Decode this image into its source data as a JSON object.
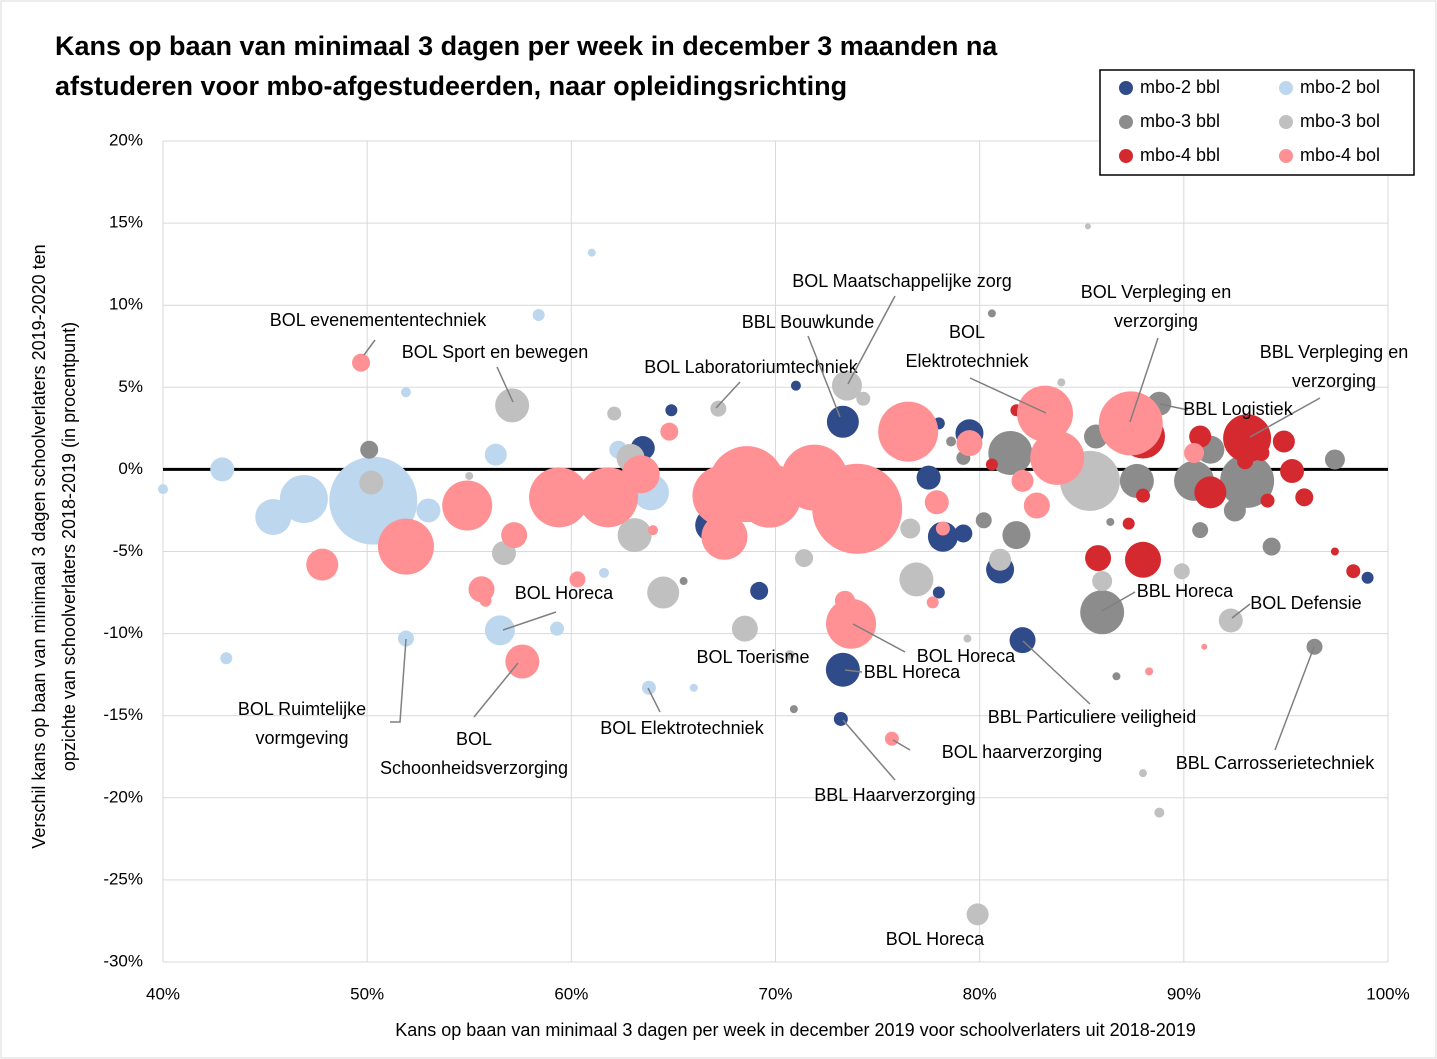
{
  "chart_data": {
    "type": "bubble",
    "title": [
      "Kans op baan van minimaal 3 dagen per week in december 3 maanden na",
      "afstuderen voor mbo-afgestudeerden, naar opleidingsrichting"
    ],
    "xlabel": "Kans op baan van minimaal 3 dagen per week in december 2019 voor schoolverlaters uit 2018-2019",
    "ylabel": [
      "Verschil kans op baan van minimaal 3 dagen schoolverlaters 2019-2020 ten",
      "opzichte van schoolverlaters 2018-2019 (in procentpunt)"
    ],
    "xlim": [
      40,
      100
    ],
    "xticks": [
      {
        "value": 40,
        "label": "40%"
      },
      {
        "value": 50,
        "label": "50%"
      },
      {
        "value": 60,
        "label": "60%"
      },
      {
        "value": 70,
        "label": "70%"
      },
      {
        "value": 80,
        "label": "80%"
      },
      {
        "value": 90,
        "label": "90%"
      },
      {
        "value": 100,
        "label": "100%"
      }
    ],
    "ylim": [
      -30,
      20
    ],
    "yticks": [
      {
        "value": -30,
        "label": "-30%"
      },
      {
        "value": -25,
        "label": "-25%"
      },
      {
        "value": -20,
        "label": "-20%"
      },
      {
        "value": -15,
        "label": "-15%"
      },
      {
        "value": -10,
        "label": "-10%"
      },
      {
        "value": -5,
        "label": "-5%"
      },
      {
        "value": 0,
        "label": "0%"
      },
      {
        "value": 5,
        "label": "5%"
      },
      {
        "value": 10,
        "label": "10%"
      },
      {
        "value": 15,
        "label": "15%"
      },
      {
        "value": 20,
        "label": "20%"
      }
    ],
    "grid": true,
    "legend": "top-right",
    "series": [
      {
        "name": "mbo-2 bbl",
        "color": "#2f4b8a",
        "x": [
          63.5,
          64.9,
          71.0,
          73.3,
          78.0,
          79.5,
          77.5,
          78.2,
          79.2,
          81.0,
          82.1,
          73.3,
          73.2,
          69.2,
          66.9,
          78.0,
          91.0,
          99.0
        ],
        "values": [
          1.3,
          3.6,
          5.1,
          2.9,
          2.8,
          2.2,
          -0.5,
          -4.1,
          -3.9,
          -6.1,
          -10.4,
          -12.2,
          -15.2,
          -7.4,
          -3.4,
          -7.5,
          -1.0,
          -6.6
        ],
        "sizes": [
          12,
          6,
          5,
          16,
          6,
          14,
          12,
          15,
          9,
          14,
          13,
          17,
          7,
          9,
          17,
          6,
          12,
          6
        ]
      },
      {
        "name": "mbo-2 bol",
        "color": "#bdd7ee",
        "x": [
          40.0,
          42.9,
          43.1,
          45.4,
          46.9,
          50.3,
          51.9,
          53.0,
          56.3,
          58.4,
          61.0,
          56.5,
          59.3,
          61.6,
          62.3,
          63.9,
          63.8,
          66.0,
          51.9,
          73.9
        ],
        "values": [
          -1.2,
          0.0,
          -11.5,
          -2.9,
          -1.8,
          -1.9,
          4.7,
          -2.5,
          0.9,
          9.4,
          13.2,
          -9.8,
          -9.7,
          -6.3,
          1.2,
          -1.4,
          -13.3,
          -13.3,
          -10.3,
          -4.2
        ],
        "sizes": [
          5,
          12,
          6,
          18,
          24,
          44,
          5,
          12,
          11,
          6,
          4,
          15,
          7,
          5,
          9,
          18,
          7,
          4,
          8,
          14
        ]
      },
      {
        "name": "mbo-3 bbl",
        "color": "#8c8c8c",
        "x": [
          50.1,
          81.5,
          85.7,
          88.8,
          87.7,
          90.5,
          91.3,
          93.1,
          90.8,
          92.5,
          94.3,
          97.4,
          86.0,
          96.4,
          81.8,
          80.2,
          80.6,
          79.2,
          78.6,
          86.4,
          86.7,
          70.9,
          65.5
        ],
        "values": [
          1.2,
          1.0,
          2.0,
          4.0,
          -0.7,
          -0.7,
          1.2,
          -0.7,
          -3.7,
          -2.5,
          -4.7,
          0.6,
          -8.7,
          -10.8,
          -4.0,
          -3.1,
          9.5,
          0.7,
          1.7,
          -3.2,
          -12.6,
          -14.6,
          -6.8
        ],
        "sizes": [
          9,
          22,
          12,
          12,
          17,
          20,
          14,
          27,
          8,
          11,
          9,
          10,
          22,
          8,
          14,
          8,
          4,
          7,
          5,
          4,
          4,
          4,
          4
        ]
      },
      {
        "name": "mbo-3 bol",
        "color": "#c0c0c0",
        "x": [
          50.2,
          55.0,
          57.1,
          56.7,
          62.1,
          63.1,
          62.9,
          64.5,
          67.2,
          68.5,
          71.4,
          73.5,
          74.3,
          76.6,
          76.9,
          85.4,
          81.0,
          86.0,
          89.9,
          92.3,
          84.0,
          85.3,
          88.0,
          88.8,
          79.9,
          79.4,
          70.7
        ],
        "values": [
          -0.8,
          -0.4,
          3.9,
          -5.1,
          3.4,
          -4.0,
          0.7,
          -7.5,
          3.7,
          -9.7,
          -5.4,
          5.1,
          4.3,
          -3.6,
          -6.7,
          -0.7,
          -5.5,
          -6.8,
          -6.2,
          -9.2,
          5.3,
          14.8,
          -18.5,
          -20.9,
          -27.1,
          -10.3,
          -11.3
        ],
        "sizes": [
          12,
          4,
          17,
          12,
          7,
          17,
          14,
          16,
          8,
          13,
          9,
          15,
          7,
          10,
          17,
          30,
          11,
          10,
          8,
          12,
          4,
          3,
          4,
          5,
          11,
          4,
          5
        ]
      },
      {
        "name": "mbo-4 bbl",
        "color": "#d42a2f",
        "x": [
          81.8,
          80.6,
          87.3,
          88.0,
          90.8,
          91.3,
          93.1,
          92.6,
          93.8,
          94.9,
          93.0,
          95.3,
          95.9,
          94.1,
          88.0,
          87.3,
          85.8,
          88.0,
          97.4,
          98.3
        ],
        "values": [
          3.6,
          0.3,
          2.5,
          2.0,
          2.0,
          -1.4,
          1.9,
          1.5,
          1.0,
          1.7,
          0.5,
          -0.1,
          -1.7,
          -1.9,
          -1.6,
          -3.3,
          -5.4,
          -5.5,
          -5.0,
          -6.2
        ],
        "sizes": [
          6,
          6,
          23,
          22,
          11,
          16,
          24,
          9,
          8,
          11,
          8,
          12,
          9,
          7,
          7,
          6,
          13,
          18,
          4,
          7
        ]
      },
      {
        "name": "mbo-4 bol",
        "color": "#ff9194",
        "x": [
          49.7,
          47.8,
          51.9,
          54.9,
          55.6,
          55.8,
          57.2,
          57.6,
          59.4,
          60.3,
          61.8,
          63.4,
          64.8,
          64.0,
          67.4,
          67.5,
          68.6,
          69.7,
          71.9,
          74.0,
          73.4,
          73.7,
          75.7,
          76.5,
          77.3,
          77.9,
          78.2,
          77.7,
          79.5,
          83.2,
          83.2,
          83.8,
          82.1,
          82.8,
          87.4,
          90.5,
          88.3,
          91.0
        ],
        "values": [
          6.5,
          -5.8,
          -4.7,
          -2.2,
          -7.3,
          -8.0,
          -4.0,
          -11.7,
          -1.7,
          -6.7,
          -1.7,
          -0.3,
          2.3,
          -3.7,
          -1.6,
          -4.1,
          -0.9,
          -1.6,
          -0.5,
          -2.4,
          -8.0,
          -9.4,
          -16.4,
          2.3,
          2.8,
          -2.0,
          -3.6,
          -8.1,
          1.6,
          3.4,
          2.5,
          0.7,
          -0.7,
          -2.2,
          2.8,
          1.0,
          -12.3,
          -10.8
        ],
        "sizes": [
          9,
          16,
          28,
          25,
          13,
          6,
          13,
          17,
          30,
          8,
          30,
          19,
          9,
          5,
          30,
          23,
          38,
          32,
          33,
          45,
          10,
          25,
          7,
          30,
          8,
          12,
          7,
          6,
          13,
          28,
          8,
          27,
          11,
          13,
          32,
          10,
          4,
          3
        ]
      }
    ],
    "annotations": [
      {
        "text": [
          "BOL evenemententechniek"
        ]
      },
      {
        "text": [
          "BOL Sport en bewegen"
        ]
      },
      {
        "text": [
          "BOL Laboratoriumtechniek"
        ]
      },
      {
        "text": [
          "BOL Maatschappelijke zorg"
        ]
      },
      {
        "text": [
          "BBL Bouwkunde"
        ]
      },
      {
        "text": [
          "BOL",
          "Elektrotechniek"
        ]
      },
      {
        "text": [
          "BOL Verpleging en",
          "verzorging"
        ]
      },
      {
        "text": [
          "BBL Verpleging en",
          "verzorging"
        ]
      },
      {
        "text": [
          "BBL Logistiek"
        ]
      },
      {
        "text": [
          "BOL Horeca"
        ]
      },
      {
        "text": [
          "BOL Toerisme"
        ]
      },
      {
        "text": [
          "BOL Horeca"
        ]
      },
      {
        "text": [
          "BBL Horeca"
        ]
      },
      {
        "text": [
          "BBL Horeca"
        ]
      },
      {
        "text": [
          "BOL Defensie"
        ]
      },
      {
        "text": [
          "BOL Ruimtelijke",
          "vormgeving"
        ]
      },
      {
        "text": [
          "BOL",
          "Schoonheidsverzorging"
        ]
      },
      {
        "text": [
          "BOL Elektrotechniek"
        ]
      },
      {
        "text": [
          "BBL Particuliere veiligheid"
        ]
      },
      {
        "text": [
          "BOL haarverzorging"
        ]
      },
      {
        "text": [
          "BBL Haarverzorging"
        ]
      },
      {
        "text": [
          "BBL Carrosserietechniek"
        ]
      },
      {
        "text": [
          "BOL Horeca"
        ]
      }
    ]
  }
}
